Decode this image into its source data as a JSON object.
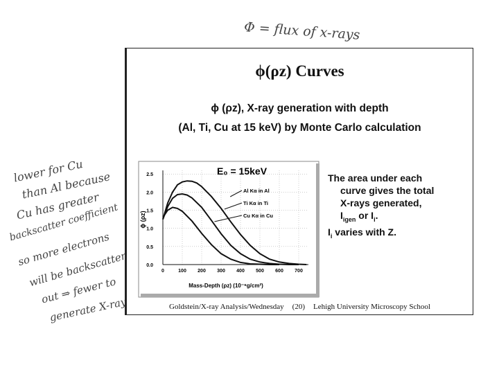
{
  "annotations": {
    "top_note": "Φ = flux of x-rays",
    "left_note_lines": [
      "lower for Cu",
      "than Al because",
      "Cu has greater",
      "backscatter coefficient",
      "so more electrons",
      "will be backscattered",
      "out ⇒ fewer to",
      "generate X-rays"
    ]
  },
  "slide": {
    "title": "ϕ(ρz) Curves",
    "subtitle_line1": "ϕ (ρz), X-ray generation with depth",
    "subtitle_line2": "(Al, Ti, Cu at 15 keV) by Monte Carlo calculation",
    "notes": {
      "line1": "The area under each",
      "line2": "curve gives the total",
      "line3": "X-rays generated,",
      "line4_a": "I",
      "line4_sub1": "igen",
      "line4_b": " or I",
      "line4_sub2": "i",
      "line4_c": ".",
      "line5_a": "I",
      "line5_sub": "i",
      "line5_b": " varies with Z."
    },
    "footer": {
      "left": "Goldstein/X-ray Analysis/Wednesday",
      "page": "(20)",
      "right": "Lehigh University Microscopy School"
    }
  },
  "chart_data": {
    "type": "line",
    "title": "E₀ = 15keV",
    "xlabel": "Mass-Depth (ρz) (10⁻⁶g/cm²)",
    "ylabel": "ϕ (ρz)",
    "xlim": [
      0,
      750
    ],
    "ylim": [
      0,
      2.6
    ],
    "x_ticks": [
      0,
      100,
      200,
      300,
      400,
      500,
      600,
      700
    ],
    "y_ticks": [
      "0.0",
      "0.5",
      "1.0",
      "1.5",
      "2.0",
      "2.5"
    ],
    "grid": true,
    "series": [
      {
        "name": "Al Kα in Al",
        "x": [
          0,
          25,
          50,
          75,
          100,
          125,
          150,
          175,
          200,
          250,
          300,
          350,
          400,
          450,
          500,
          550,
          600,
          650,
          700,
          740
        ],
        "y": [
          1.25,
          1.7,
          2.0,
          2.2,
          2.28,
          2.31,
          2.3,
          2.25,
          2.15,
          1.88,
          1.55,
          1.18,
          0.83,
          0.53,
          0.3,
          0.15,
          0.07,
          0.03,
          0.01,
          0.0
        ]
      },
      {
        "name": "Ti Kα in Ti",
        "x": [
          0,
          25,
          50,
          75,
          100,
          125,
          150,
          200,
          250,
          300,
          350,
          400,
          450,
          500,
          550,
          600,
          650,
          700
        ],
        "y": [
          1.25,
          1.6,
          1.83,
          1.93,
          1.95,
          1.92,
          1.84,
          1.58,
          1.22,
          0.85,
          0.53,
          0.3,
          0.15,
          0.07,
          0.03,
          0.01,
          0.0,
          0.0
        ]
      },
      {
        "name": "Cu Kα in Cu",
        "x": [
          0,
          25,
          50,
          75,
          100,
          150,
          200,
          250,
          300,
          350,
          400,
          450,
          500,
          550,
          600
        ],
        "y": [
          1.3,
          1.5,
          1.58,
          1.55,
          1.47,
          1.2,
          0.86,
          0.55,
          0.3,
          0.15,
          0.06,
          0.02,
          0.01,
          0.0,
          0.0
        ]
      }
    ]
  },
  "colors": {
    "line": "#111111",
    "grid": "#999999",
    "annotation_ink": "#444444"
  }
}
